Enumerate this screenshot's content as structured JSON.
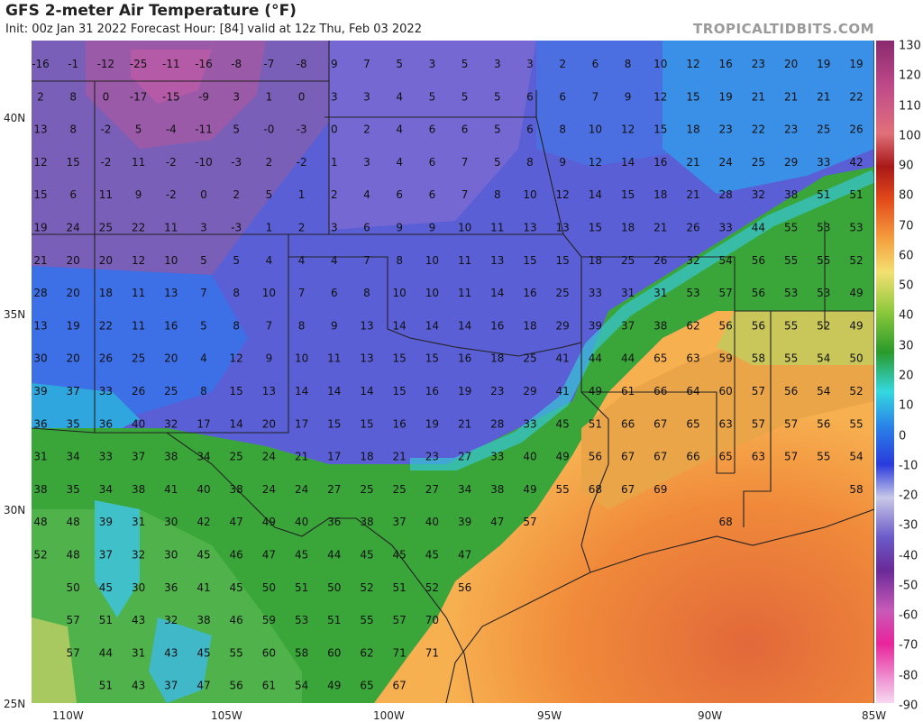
{
  "header": {
    "title": "GFS 2-meter Air Temperature (°F)",
    "subtitle": "Init: 00z Jan 31 2022   Forecast Hour: [84]   valid at 12z Thu, Feb 03 2022",
    "credit": "TROPICALTIDBITS.COM"
  },
  "axes": {
    "lon_labels": [
      "110W",
      "105W",
      "100W",
      "95W",
      "90W",
      "85W"
    ],
    "lat_labels": [
      "40N",
      "35N",
      "30N",
      "25N"
    ]
  },
  "colorbar": {
    "labels": [
      "130",
      "120",
      "110",
      "100",
      "90",
      "80",
      "70",
      "60",
      "50",
      "40",
      "30",
      "20",
      "10",
      "0",
      "-10",
      "-20",
      "-30",
      "-40",
      "-50",
      "-60",
      "-70",
      "-80",
      "-90"
    ]
  },
  "point_values": [
    [
      "-16",
      "-1",
      "-12",
      "-25",
      "-11",
      "-16",
      "-8",
      "-7",
      "-8",
      "9",
      "7",
      "5",
      "3",
      "5",
      "3",
      "3",
      "2",
      "6",
      "8",
      "10",
      "12",
      "16",
      "23",
      "20",
      "19",
      "19"
    ],
    [
      "2",
      "8",
      "0",
      "-17",
      "-15",
      "-9",
      "3",
      "1",
      "0",
      "3",
      "3",
      "4",
      "5",
      "5",
      "5",
      "6",
      "6",
      "7",
      "9",
      "12",
      "15",
      "19",
      "21",
      "21",
      "21",
      "22"
    ],
    [
      "13",
      "8",
      "-2",
      "5",
      "-4",
      "-11",
      "5",
      "-0",
      "-3",
      "0",
      "2",
      "4",
      "6",
      "6",
      "5",
      "6",
      "8",
      "10",
      "12",
      "15",
      "18",
      "23",
      "22",
      "23",
      "25",
      "26"
    ],
    [
      "12",
      "15",
      "-2",
      "11",
      "-2",
      "-10",
      "-3",
      "2",
      "-2",
      "1",
      "3",
      "4",
      "6",
      "7",
      "5",
      "8",
      "9",
      "12",
      "14",
      "16",
      "21",
      "24",
      "25",
      "29",
      "33",
      "42"
    ],
    [
      "15",
      "6",
      "11",
      "9",
      "-2",
      "0",
      "2",
      "5",
      "1",
      "2",
      "4",
      "6",
      "6",
      "7",
      "8",
      "10",
      "12",
      "14",
      "15",
      "18",
      "21",
      "28",
      "32",
      "38",
      "51",
      "51"
    ],
    [
      "19",
      "24",
      "25",
      "22",
      "11",
      "3",
      "-3",
      "1",
      "2",
      "3",
      "6",
      "9",
      "9",
      "10",
      "11",
      "13",
      "13",
      "15",
      "18",
      "21",
      "26",
      "33",
      "44",
      "55",
      "53",
      "53"
    ],
    [
      "21",
      "20",
      "20",
      "12",
      "10",
      "5",
      "5",
      "4",
      "4",
      "4",
      "7",
      "8",
      "10",
      "11",
      "13",
      "15",
      "15",
      "18",
      "25",
      "26",
      "32",
      "54",
      "56",
      "55",
      "55",
      "52"
    ],
    [
      "28",
      "20",
      "18",
      "11",
      "13",
      "7",
      "8",
      "10",
      "7",
      "6",
      "8",
      "10",
      "10",
      "11",
      "14",
      "16",
      "25",
      "33",
      "31",
      "31",
      "53",
      "57",
      "56",
      "53",
      "53",
      "49"
    ],
    [
      "13",
      "19",
      "22",
      "11",
      "16",
      "5",
      "8",
      "7",
      "8",
      "9",
      "13",
      "14",
      "14",
      "14",
      "16",
      "18",
      "29",
      "39",
      "37",
      "38",
      "62",
      "56",
      "56",
      "55",
      "52",
      "49"
    ],
    [
      "30",
      "20",
      "26",
      "25",
      "20",
      "4",
      "12",
      "9",
      "10",
      "11",
      "13",
      "15",
      "15",
      "16",
      "18",
      "25",
      "41",
      "44",
      "44",
      "65",
      "63",
      "59",
      "58",
      "55",
      "54",
      "50"
    ],
    [
      "39",
      "37",
      "33",
      "26",
      "25",
      "8",
      "15",
      "13",
      "14",
      "14",
      "14",
      "15",
      "16",
      "19",
      "23",
      "29",
      "41",
      "49",
      "61",
      "66",
      "64",
      "60",
      "57",
      "56",
      "54",
      "52"
    ],
    [
      "36",
      "35",
      "36",
      "40",
      "32",
      "17",
      "14",
      "20",
      "17",
      "15",
      "15",
      "16",
      "19",
      "21",
      "28",
      "33",
      "45",
      "51",
      "66",
      "67",
      "65",
      "63",
      "57",
      "57",
      "56",
      "55"
    ],
    [
      "31",
      "34",
      "33",
      "37",
      "38",
      "34",
      "25",
      "24",
      "21",
      "17",
      "18",
      "21",
      "23",
      "27",
      "33",
      "40",
      "49",
      "56",
      "67",
      "67",
      "66",
      "65",
      "63",
      "57",
      "55",
      "54"
    ],
    [
      "38",
      "35",
      "34",
      "38",
      "41",
      "40",
      "38",
      "24",
      "24",
      "27",
      "25",
      "25",
      "27",
      "34",
      "38",
      "49",
      "55",
      "68",
      "67",
      "69",
      "",
      "",
      "",
      "",
      "",
      "58"
    ],
    [
      "48",
      "48",
      "39",
      "31",
      "30",
      "42",
      "47",
      "49",
      "40",
      "36",
      "38",
      "37",
      "40",
      "39",
      "47",
      "57",
      "",
      "",
      "",
      "",
      "",
      "68",
      "",
      "",
      "",
      ""
    ],
    [
      "52",
      "48",
      "37",
      "32",
      "30",
      "45",
      "46",
      "47",
      "45",
      "44",
      "45",
      "45",
      "45",
      "47",
      "",
      "",
      "",
      "",
      "",
      "",
      "",
      "",
      "",
      "",
      "",
      ""
    ],
    [
      "",
      "50",
      "45",
      "30",
      "36",
      "41",
      "45",
      "50",
      "51",
      "50",
      "52",
      "51",
      "52",
      "56",
      "",
      "",
      "",
      "",
      "",
      "",
      "",
      "",
      "",
      "",
      "",
      ""
    ],
    [
      "",
      "57",
      "51",
      "43",
      "32",
      "38",
      "46",
      "59",
      "53",
      "51",
      "55",
      "57",
      "70",
      "",
      "",
      "",
      "",
      "",
      "",
      "",
      "",
      "",
      "",
      "",
      "",
      ""
    ],
    [
      "",
      "57",
      "44",
      "31",
      "43",
      "45",
      "55",
      "60",
      "58",
      "60",
      "62",
      "71",
      "71",
      "",
      "",
      "",
      "",
      "",
      "",
      "",
      "",
      "",
      "",
      "",
      "",
      ""
    ],
    [
      "",
      "",
      "51",
      "43",
      "37",
      "47",
      "56",
      "61",
      "54",
      "49",
      "65",
      "67",
      "",
      "",
      "",
      "",
      "",
      "",
      "",
      "",
      "",
      "",
      "",
      "",
      "",
      ""
    ]
  ]
}
